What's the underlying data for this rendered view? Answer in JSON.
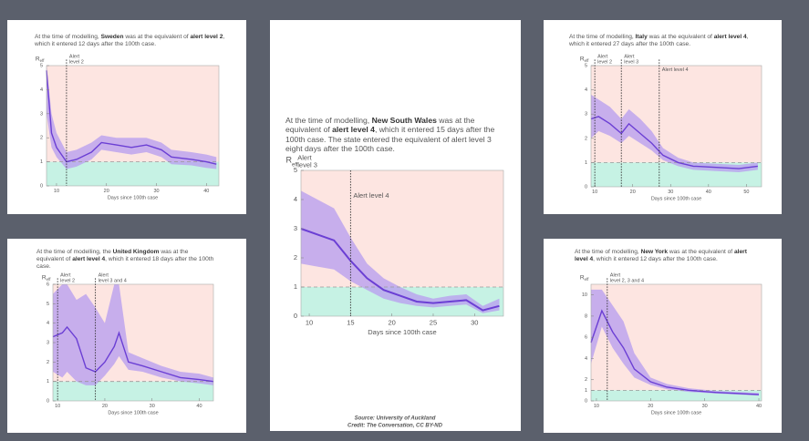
{
  "chart_data": [
    {
      "type": "line",
      "caption": [
        "At the time of modelling, ",
        "Sweden",
        " was at the equivalent of ",
        "alert level 2",
        ", which it entered 12 days after the 100th case."
      ],
      "ylabel": [
        "R",
        "eff"
      ],
      "xlabel": "Days since 100th case",
      "x": [
        8,
        9,
        10,
        12,
        14,
        17,
        19,
        22,
        25,
        28,
        31,
        33,
        37,
        40,
        42
      ],
      "values": [
        4.8,
        2.2,
        1.6,
        1.0,
        1.1,
        1.4,
        1.8,
        1.7,
        1.6,
        1.7,
        1.5,
        1.2,
        1.1,
        1.0,
        0.9
      ],
      "lower": [
        3.0,
        1.6,
        1.2,
        0.7,
        0.8,
        1.1,
        1.5,
        1.4,
        1.3,
        1.4,
        1.2,
        0.9,
        0.85,
        0.75,
        0.7
      ],
      "upper": [
        5.0,
        3.0,
        2.2,
        1.4,
        1.5,
        1.8,
        2.1,
        2.0,
        2.0,
        2.0,
        1.8,
        1.5,
        1.4,
        1.3,
        1.2
      ],
      "threshold": 1,
      "xlim": [
        8,
        42.5
      ],
      "xticks": [
        10,
        20,
        30,
        40
      ],
      "ylim": [
        0,
        5
      ],
      "yticks": [
        0,
        1,
        2,
        3,
        4,
        5
      ],
      "annotations": [
        {
          "x": 12,
          "label": [
            "Alert",
            "level 2"
          ]
        }
      ],
      "color": "#6b3fd4",
      "band_color": "#b9a0ef"
    },
    {
      "type": "line",
      "caption": [
        "At the time of modelling, ",
        "New South Wales",
        " was at the equivalent of ",
        "alert level 4",
        ", which it entered 15 days after the 100th case. The state entered the equivalent of alert level 3 eight days after the 100th case."
      ],
      "ylabel": [
        "R",
        "eff"
      ],
      "xlabel": "Days since 100th case",
      "x": [
        9,
        11,
        13,
        15,
        17,
        19,
        21,
        23,
        25,
        27,
        29,
        31,
        33
      ],
      "values": [
        3.0,
        2.8,
        2.6,
        1.9,
        1.3,
        0.9,
        0.7,
        0.5,
        0.45,
        0.5,
        0.55,
        0.2,
        0.35
      ],
      "lower": [
        1.8,
        1.7,
        1.6,
        1.2,
        0.9,
        0.6,
        0.45,
        0.35,
        0.3,
        0.35,
        0.4,
        0.1,
        0.2
      ],
      "upper": [
        4.3,
        4.0,
        3.7,
        2.7,
        1.8,
        1.3,
        1.0,
        0.75,
        0.6,
        0.7,
        0.75,
        0.35,
        0.6
      ],
      "threshold": 1,
      "xlim": [
        9,
        33.5
      ],
      "xticks": [
        10,
        15,
        20,
        25,
        30
      ],
      "ylim": [
        0,
        5
      ],
      "yticks": [
        0,
        1,
        2,
        3,
        4,
        5
      ],
      "annotations": [
        {
          "label": [
            "Alert",
            "level 3"
          ]
        },
        {
          "x": 15,
          "label": [
            "Alert level 4"
          ]
        }
      ],
      "color": "#6b3fd4",
      "band_color": "#b9a0ef",
      "footer": [
        "Source: University of Auckland",
        "Credit: The Conversation, CC BY-ND"
      ]
    },
    {
      "type": "line",
      "caption": [
        "At the time of modelling, ",
        "Italy",
        " was at the equivalent of ",
        "alert level 4",
        ", which it entered 27 days after the 100th case."
      ],
      "ylabel": [
        "R",
        "eff"
      ],
      "xlabel": "Days since 100th case",
      "x": [
        9,
        11,
        14,
        17,
        19,
        22,
        25,
        28,
        32,
        36,
        42,
        48,
        53
      ],
      "values": [
        2.8,
        2.9,
        2.6,
        2.2,
        2.6,
        2.2,
        1.8,
        1.3,
        1.0,
        0.85,
        0.8,
        0.75,
        0.85
      ],
      "lower": [
        2.0,
        2.3,
        2.1,
        1.8,
        2.1,
        1.8,
        1.5,
        1.1,
        0.85,
        0.7,
        0.65,
        0.6,
        0.7
      ],
      "upper": [
        3.8,
        3.6,
        3.3,
        2.8,
        3.2,
        2.8,
        2.3,
        1.6,
        1.2,
        1.0,
        0.95,
        0.9,
        1.0
      ],
      "threshold": 1,
      "xlim": [
        9,
        54
      ],
      "xticks": [
        10,
        20,
        30,
        40,
        50
      ],
      "ylim": [
        0,
        5
      ],
      "yticks": [
        0,
        1,
        2,
        3,
        4,
        5
      ],
      "annotations": [
        {
          "x": 10,
          "label": [
            "Alert",
            "level 2"
          ]
        },
        {
          "x": 17,
          "label": [
            "Alert",
            "level 3"
          ]
        },
        {
          "x": 27,
          "label": [
            "Alert level 4"
          ]
        }
      ],
      "color": "#6b3fd4",
      "band_color": "#b9a0ef"
    },
    {
      "type": "line",
      "caption": [
        "At the time of modelling, the ",
        "United Kingdom",
        " was at the equivalent of ",
        "alert level 4",
        ", which it entered 18 days after the 100th case."
      ],
      "ylabel": [
        "R",
        "eff"
      ],
      "xlabel": "Days since 100th case",
      "x": [
        9,
        11,
        12,
        14,
        16,
        18,
        20,
        22,
        23,
        25,
        28,
        32,
        36,
        40,
        43
      ],
      "values": [
        3.3,
        3.5,
        3.8,
        3.2,
        1.7,
        1.5,
        2.0,
        2.8,
        3.5,
        2.0,
        1.8,
        1.5,
        1.2,
        1.1,
        1.0
      ],
      "lower": [
        1.5,
        1.2,
        1.5,
        1.0,
        0.8,
        0.8,
        1.3,
        1.9,
        2.3,
        1.6,
        1.5,
        1.2,
        1.0,
        0.9,
        0.8
      ],
      "upper": [
        5.5,
        6.0,
        6.0,
        5.2,
        5.5,
        4.8,
        4.0,
        6.0,
        6.0,
        2.5,
        2.2,
        1.8,
        1.5,
        1.4,
        1.2
      ],
      "threshold": 1,
      "xlim": [
        9,
        43
      ],
      "xticks": [
        10,
        20,
        30,
        40
      ],
      "ylim": [
        0,
        6
      ],
      "yticks": [
        0,
        1,
        2,
        3,
        4,
        5,
        6
      ],
      "annotations": [
        {
          "x": 10,
          "label": [
            "Alert",
            "level 2"
          ]
        },
        {
          "x": 18,
          "label": [
            "Alert",
            "level 3 and 4"
          ]
        }
      ],
      "color": "#6b3fd4",
      "band_color": "#b9a0ef"
    },
    {
      "type": "line",
      "caption": [
        "At the time of modelling, ",
        "New York",
        " was at the equivalent of ",
        "alert level 4",
        ", which it entered 12 days after the 100th case."
      ],
      "ylabel": [
        "R",
        "eff"
      ],
      "xlabel": "Days since 100th case",
      "x": [
        9,
        11,
        13,
        15,
        17,
        20,
        23,
        27,
        32,
        36,
        40
      ],
      "values": [
        5.5,
        8.5,
        6.5,
        5.0,
        3.0,
        1.8,
        1.3,
        1.0,
        0.8,
        0.7,
        0.6
      ],
      "lower": [
        3.5,
        7.0,
        5.0,
        3.5,
        2.2,
        1.5,
        1.1,
        0.85,
        0.7,
        0.6,
        0.5
      ],
      "upper": [
        10.5,
        10.5,
        9.0,
        7.5,
        4.5,
        2.2,
        1.6,
        1.2,
        0.95,
        0.85,
        0.75
      ],
      "threshold": 1,
      "xlim": [
        9,
        40.5
      ],
      "xticks": [
        10,
        20,
        30,
        40
      ],
      "ylim": [
        0,
        11
      ],
      "yticks": [
        0,
        1,
        2,
        4,
        6,
        8,
        10
      ],
      "annotations": [
        {
          "x": 12,
          "label": [
            "Alert",
            "level 2, 3 and 4"
          ]
        }
      ],
      "color": "#6b3fd4",
      "band_color": "#b9a0ef"
    }
  ]
}
